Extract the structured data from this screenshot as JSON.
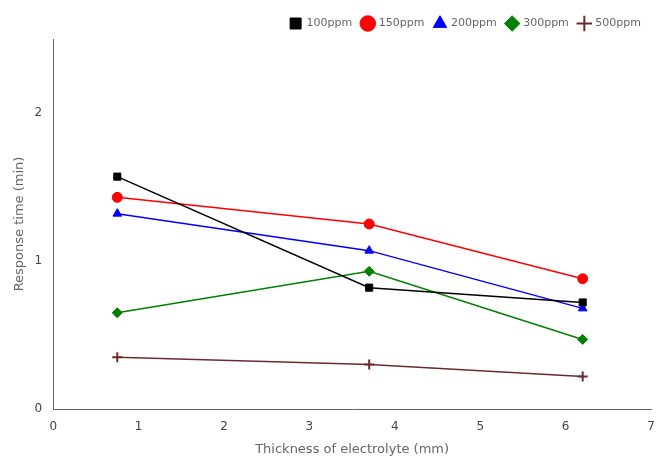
{
  "chart_data": {
    "type": "line",
    "x_label": "Thickness of electrolyte (mm)",
    "y_label": "Response time (min)",
    "x": [
      0.75,
      3.7,
      6.2
    ],
    "series": [
      {
        "name": "100ppm",
        "color": "black",
        "marker": "square",
        "line_style": "solid",
        "values": [
          1.57,
          0.82,
          0.72
        ]
      },
      {
        "name": "150ppm",
        "color": "red",
        "marker": "circle",
        "line_style": "solid",
        "values": [
          1.43,
          1.25,
          0.88
        ]
      },
      {
        "name": "200ppm",
        "color": "blue",
        "marker": "triangle",
        "line_style": "solid",
        "values": [
          1.32,
          1.07,
          0.68
        ]
      },
      {
        "name": "300ppm",
        "color": "green",
        "marker": "diamond",
        "line_style": "solid",
        "values": [
          0.65,
          0.93,
          0.47
        ]
      },
      {
        "name": "500ppm",
        "color": "#6B2B2B",
        "marker": "plus",
        "line_style": "solid",
        "values": [
          0.35,
          0.3,
          0.22
        ]
      }
    ],
    "xlim": [
      0,
      7
    ],
    "xticks": [
      0,
      1,
      2,
      3,
      4,
      5,
      6,
      7
    ],
    "ylim": [
      0,
      2.5
    ],
    "yticks": [
      0,
      1,
      2
    ],
    "grid": false,
    "legend": "upper right"
  }
}
